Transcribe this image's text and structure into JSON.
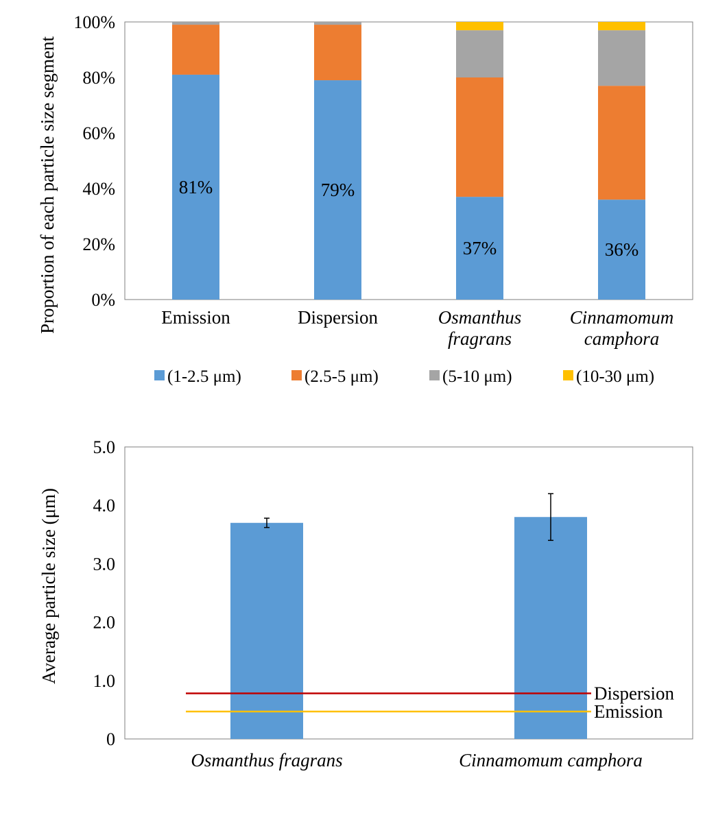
{
  "chart_data": [
    {
      "type": "bar",
      "stacked": true,
      "percent": true,
      "ylabel": "Proportion of each particle size segment",
      "yticks": [
        "0%",
        "20%",
        "40%",
        "60%",
        "80%",
        "100%"
      ],
      "ylim": [
        0,
        100
      ],
      "categories": [
        {
          "lines": [
            "Emission"
          ],
          "italic": false
        },
        {
          "lines": [
            "Dispersion"
          ],
          "italic": false
        },
        {
          "lines": [
            "Osmanthus",
            "fragrans"
          ],
          "italic": true
        },
        {
          "lines": [
            "Cinnamomum",
            "camphora"
          ],
          "italic": true
        }
      ],
      "series": [
        {
          "name": "(1-2.5 μm)",
          "color": "#5b9bd5",
          "values": [
            81,
            79,
            37,
            36
          ]
        },
        {
          "name": "(2.5-5 μm)",
          "color": "#ed7d31",
          "values": [
            18,
            20,
            43,
            41
          ]
        },
        {
          "name": "(5-10 μm)",
          "color": "#a5a5a5",
          "values": [
            1,
            1,
            17,
            20
          ]
        },
        {
          "name": "(10-30 μm)",
          "color": "#ffc000",
          "values": [
            0,
            0,
            3,
            3
          ]
        }
      ],
      "data_labels": [
        "81%",
        "79%",
        "37%",
        "36%"
      ],
      "legend_position": "bottom",
      "grid": false
    },
    {
      "type": "bar",
      "ylabel": "Average particle size (μm)",
      "yticks": [
        "0",
        "1.0",
        "2.0",
        "3.0",
        "4.0",
        "5.0"
      ],
      "ylim": [
        0,
        5
      ],
      "categories": [
        {
          "lines": [
            "Osmanthus fragrans"
          ],
          "italic": true
        },
        {
          "lines": [
            "Cinnamomum camphora"
          ],
          "italic": true
        }
      ],
      "values": [
        3.7,
        3.8
      ],
      "errors": [
        0.08,
        0.4
      ],
      "bar_color": "#5b9bd5",
      "reference_lines": [
        {
          "label": "Dispersion",
          "value": 0.78,
          "color": "#c00000"
        },
        {
          "label": "Emission",
          "value": 0.47,
          "color": "#ffc000"
        }
      ],
      "grid": false
    }
  ]
}
